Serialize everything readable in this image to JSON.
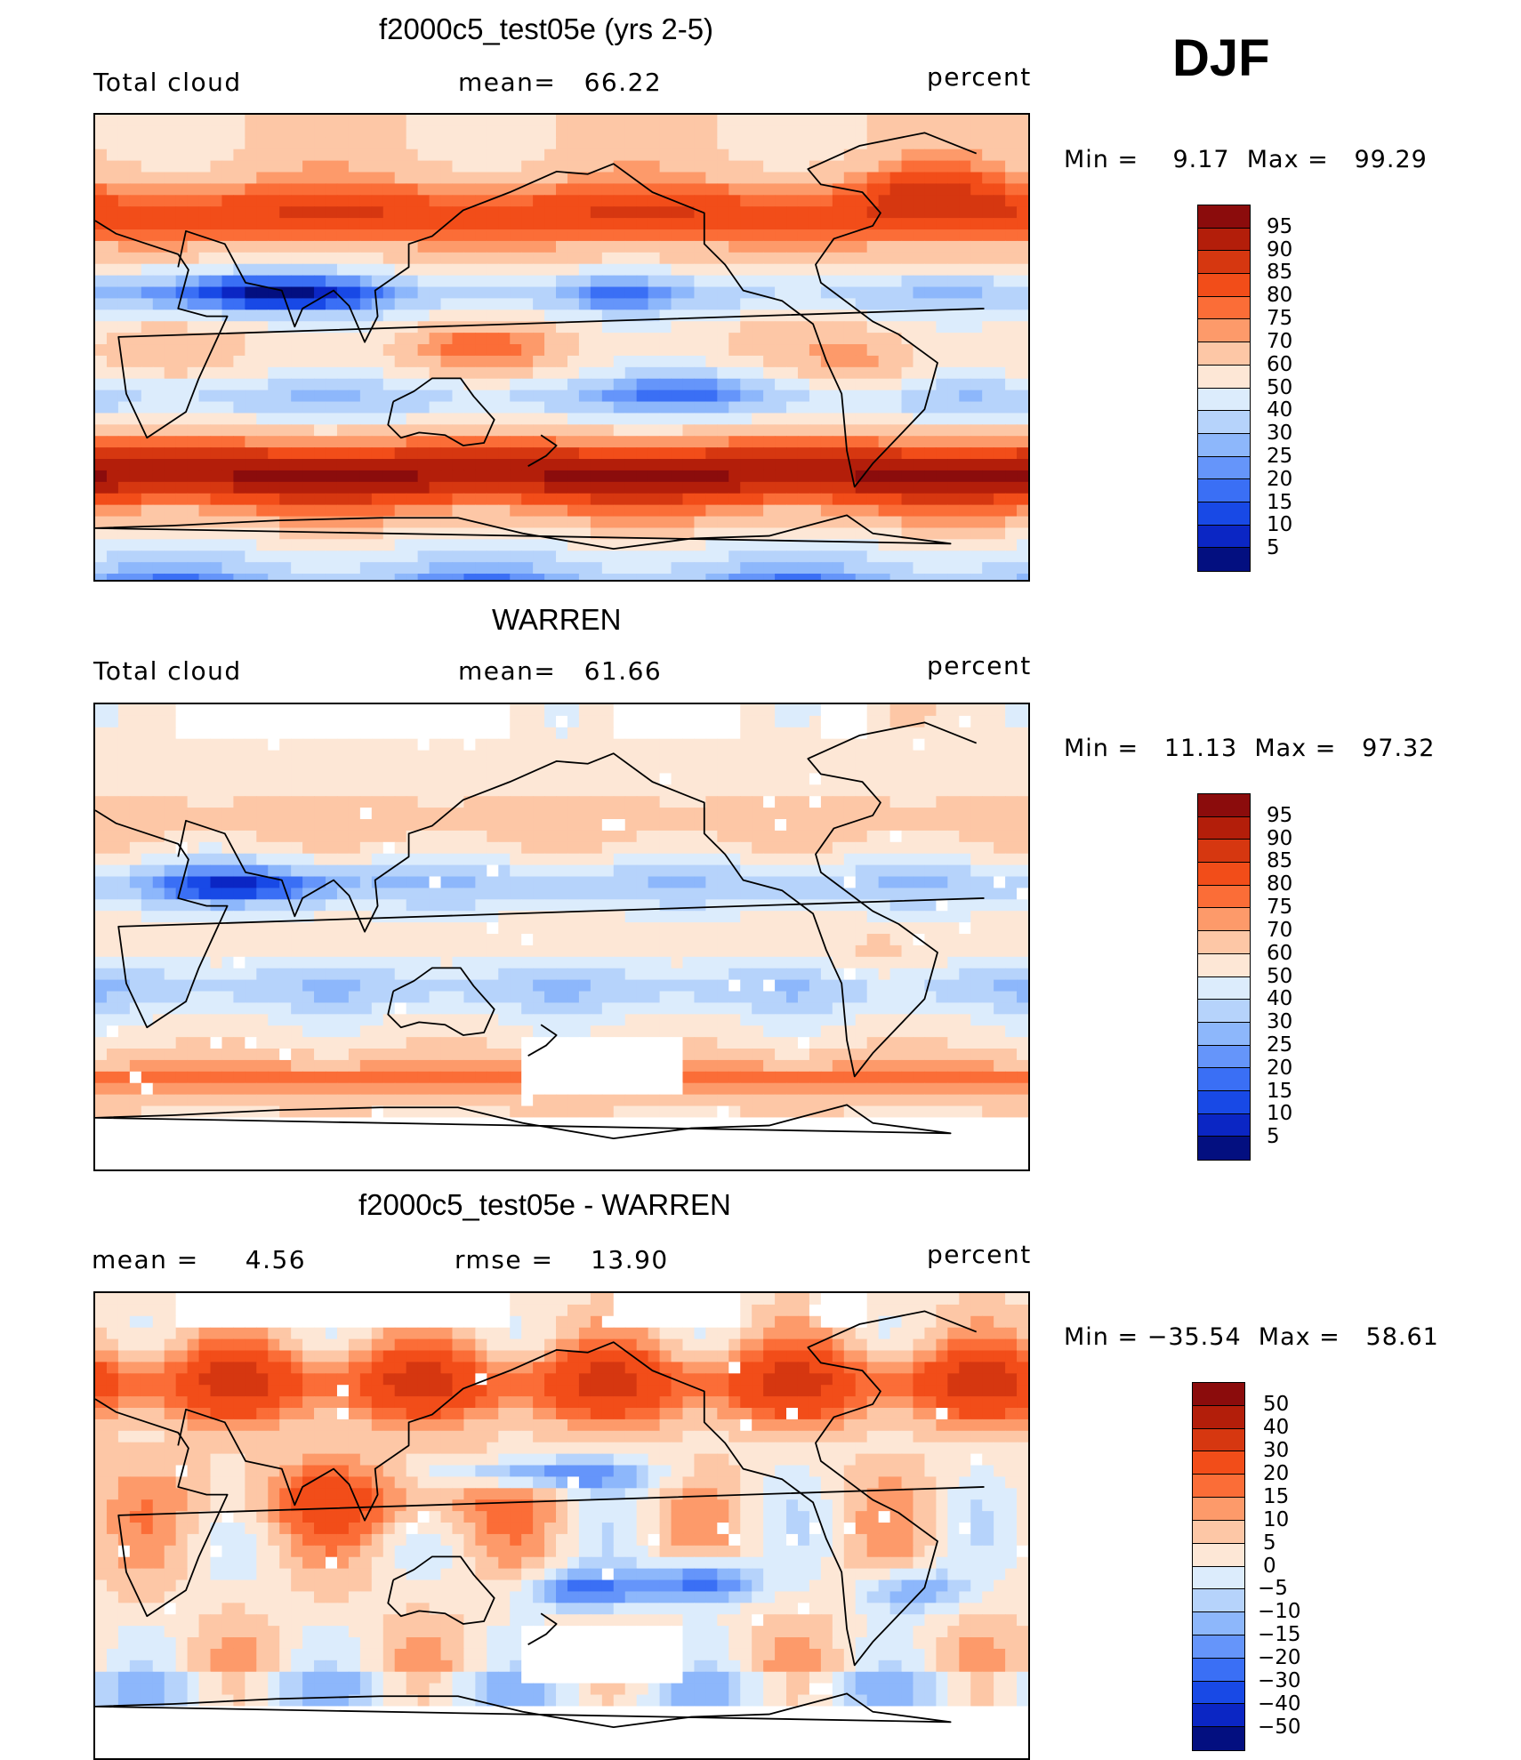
{
  "season": "DJF",
  "panels": [
    {
      "title": "f2000c5_test05e (yrs 2-5)",
      "left_label": "Total cloud",
      "center_label": "mean=   66.22",
      "right_label": "percent",
      "minmax": "Min =    9.17  Max =   99.29",
      "field": "model"
    },
    {
      "title": "WARREN",
      "left_label": "Total cloud",
      "center_label": "mean=   61.66",
      "right_label": "percent",
      "minmax": "Min =   11.13  Max =   97.32",
      "field": "obs"
    },
    {
      "title": "f2000c5_test05e - WARREN",
      "left_label": "mean =     4.56",
      "center_label": "rmse =    13.90",
      "right_label": "percent",
      "minmax": "Min = −35.54  Max =   58.61",
      "field": "diff"
    }
  ],
  "colorbars": {
    "abs": {
      "labels": [
        "95",
        "90",
        "85",
        "80",
        "75",
        "70",
        "60",
        "50",
        "40",
        "30",
        "25",
        "20",
        "15",
        "10",
        "5"
      ],
      "colors": [
        "#8b0c0c",
        "#b31e0a",
        "#d63710",
        "#f24d19",
        "#fb6d37",
        "#fd9a6a",
        "#fdc7a6",
        "#fde7d6",
        "#dcecfc",
        "#b6d3fb",
        "#8db7fb",
        "#6595fa",
        "#3a6ff5",
        "#1849e6",
        "#0b26c4",
        "#030f80"
      ]
    },
    "diff": {
      "labels": [
        "50",
        "40",
        "30",
        "20",
        "15",
        "10",
        "5",
        "0",
        "−5",
        "−10",
        "−15",
        "−20",
        "−30",
        "−40",
        "−50"
      ],
      "colors": [
        "#8b0c0c",
        "#b31e0a",
        "#d63710",
        "#f24d19",
        "#fb6d37",
        "#fd9a6a",
        "#fdc7a6",
        "#fde7d6",
        "#dcecfc",
        "#b6d3fb",
        "#8db7fb",
        "#6595fa",
        "#3a6ff5",
        "#1849e6",
        "#0b26c4",
        "#030f80"
      ]
    }
  }
}
